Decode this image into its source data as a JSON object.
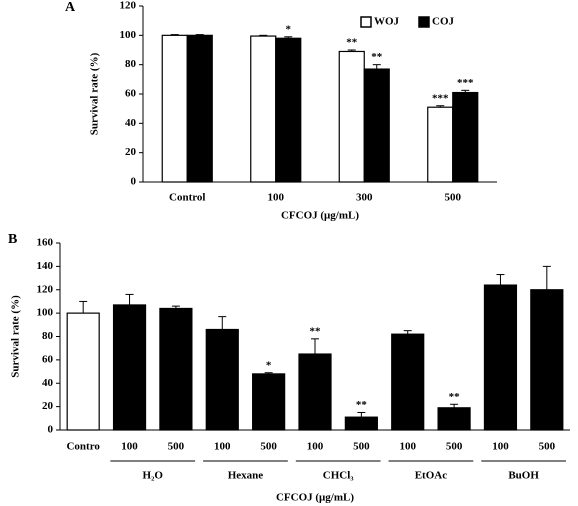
{
  "chart_data": [
    {
      "type": "bar",
      "panel_label": "A",
      "ylabel": "Survival rate (%)",
      "xlabel": "CFCOJ (μg/mL)",
      "categories": [
        "Control",
        "100",
        "300",
        "500"
      ],
      "series": [
        {
          "name": "WOJ",
          "color": "#ffffff",
          "values": [
            100,
            99.5,
            89,
            51
          ],
          "errors": [
            0.5,
            0.5,
            1,
            1
          ],
          "annotations": [
            null,
            null,
            "**",
            "***"
          ]
        },
        {
          "name": "COJ",
          "color": "#000000",
          "values": [
            100,
            98,
            77,
            61
          ],
          "errors": [
            0.5,
            1,
            3,
            1.5
          ],
          "annotations": [
            null,
            "*",
            "**",
            "***"
          ]
        }
      ],
      "ylim": [
        0,
        120
      ],
      "yticks": [
        0,
        20,
        40,
        60,
        80,
        100,
        120
      ],
      "legend": "upper right"
    },
    {
      "type": "bar",
      "panel_label": "B",
      "ylabel": "Survival rate (%)",
      "xlabel": "CFCOJ (μg/mL)",
      "categories": [
        "Contro",
        "100",
        "500",
        "100",
        "500",
        "100",
        "500",
        "100",
        "500",
        "100",
        "500"
      ],
      "category_groups": [
        null,
        "H₂O",
        "H₂O",
        "Hexane",
        "Hexane",
        "CHCl₃",
        "CHCl₃",
        "EtOAc",
        "EtOAc",
        "BuOH",
        "BuOH"
      ],
      "values": [
        100,
        107,
        104,
        86,
        48,
        65,
        11,
        82,
        19,
        124,
        120
      ],
      "errors": [
        10,
        9,
        2,
        11,
        1,
        13,
        4,
        3,
        3,
        9,
        20
      ],
      "colors": [
        "#ffffff",
        "#000000",
        "#000000",
        "#000000",
        "#000000",
        "#000000",
        "#000000",
        "#000000",
        "#000000",
        "#000000",
        "#000000"
      ],
      "annotations": [
        null,
        null,
        null,
        null,
        "*",
        "**",
        "**",
        null,
        "**",
        null,
        null
      ],
      "ylim": [
        0,
        160
      ],
      "yticks": [
        0,
        20,
        40,
        60,
        80,
        100,
        120,
        140,
        160
      ]
    }
  ]
}
